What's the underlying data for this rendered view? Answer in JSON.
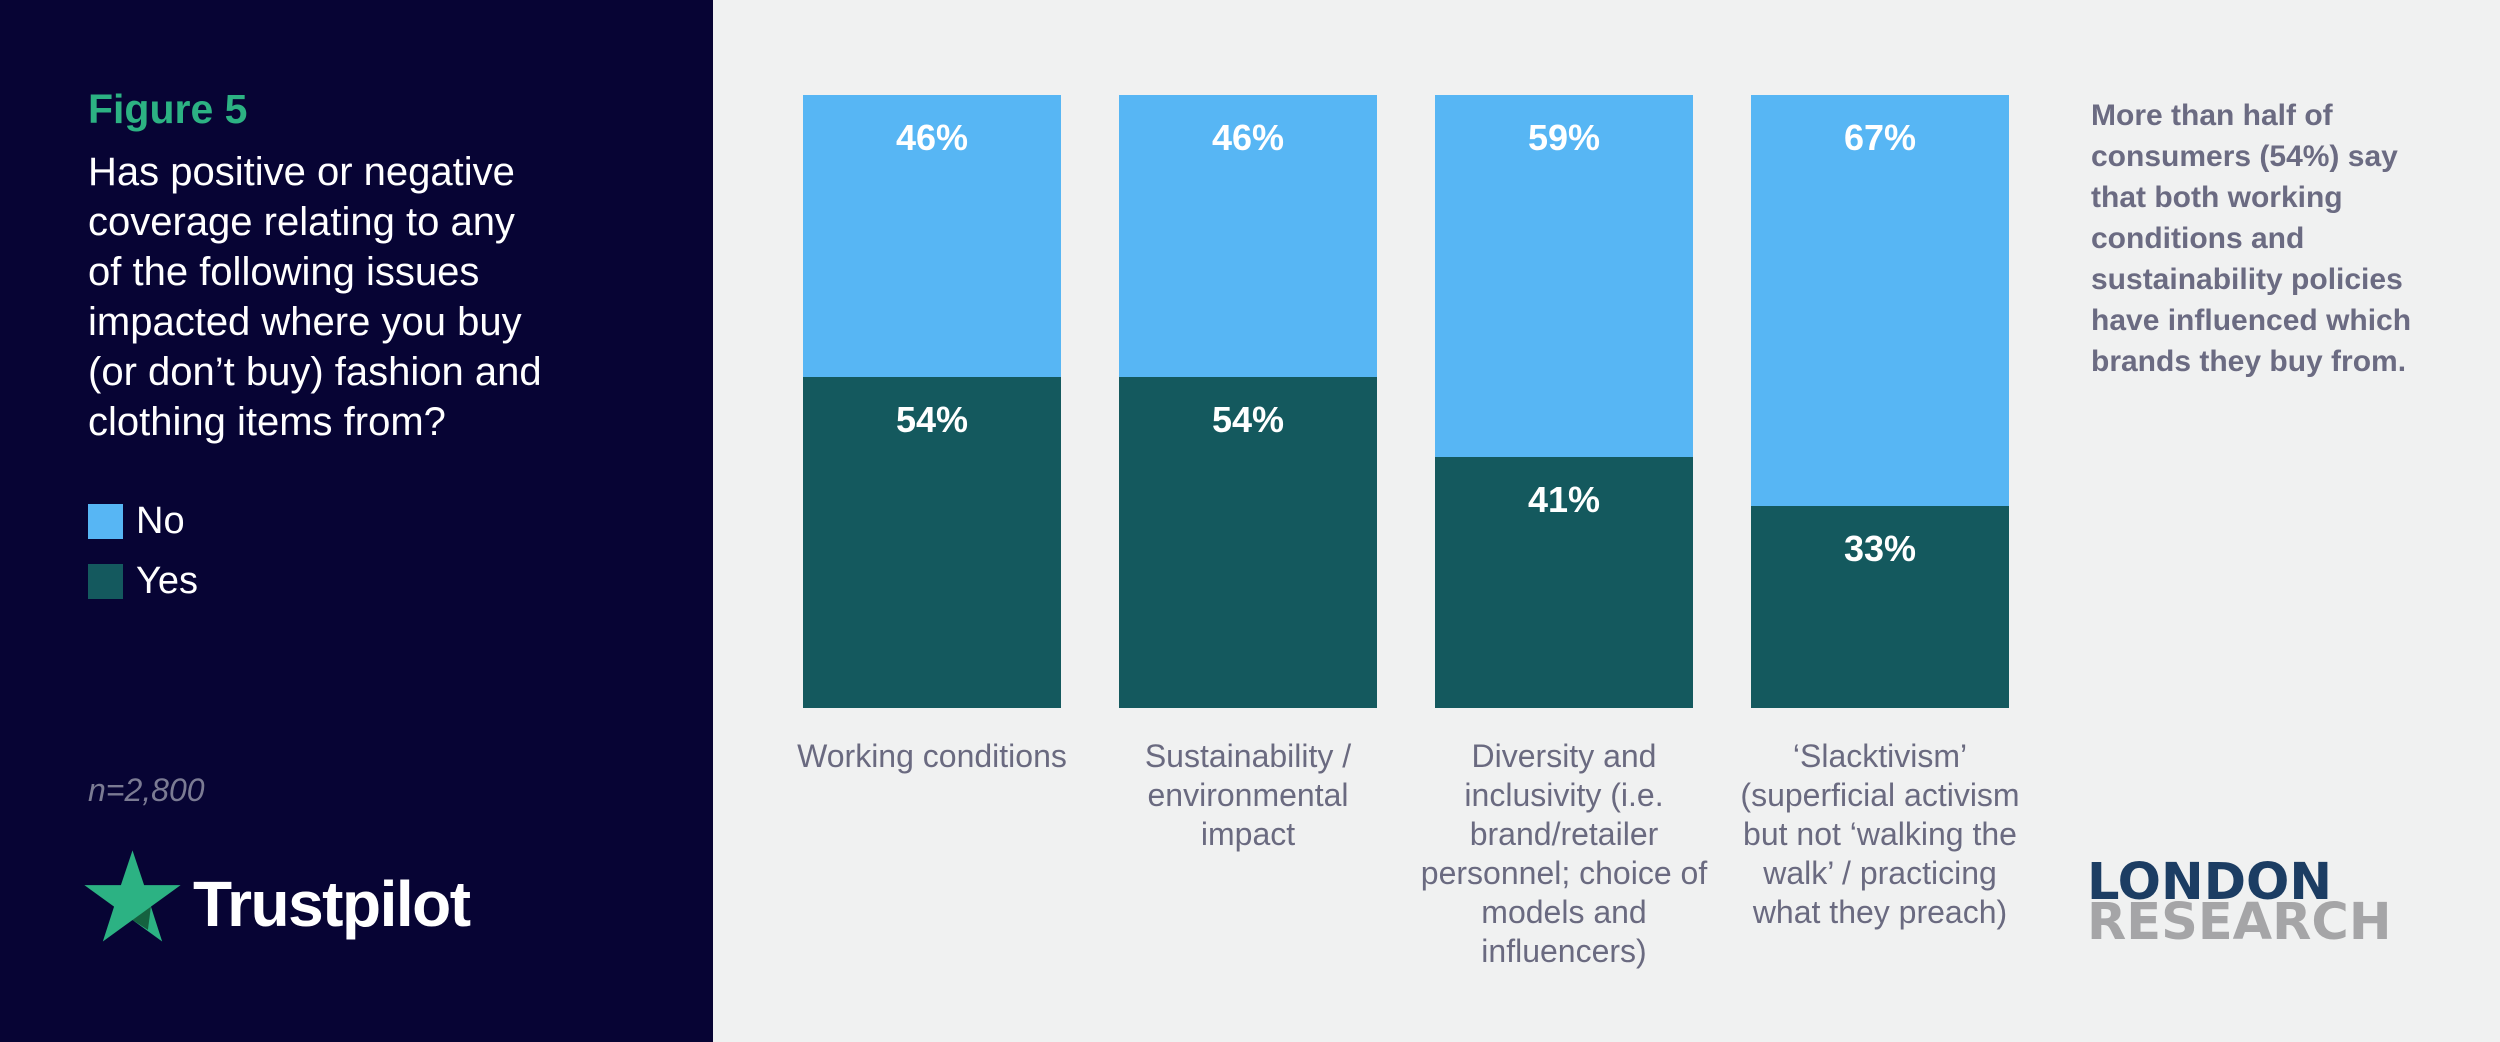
{
  "left_panel": {
    "figure_label": "Figure 5",
    "question": "Has positive or negative coverage relating to any of the following issues impacted where you buy (or don’t buy) fashion and clothing items from?",
    "legend": [
      {
        "label": "No",
        "color": "#57b6f4"
      },
      {
        "label": "Yes",
        "color": "#14595e"
      }
    ],
    "sample_size": "n=2,800",
    "brand": "Trustpilot"
  },
  "chart_data": {
    "type": "bar",
    "stacked": true,
    "orientation": "vertical",
    "unit": "%",
    "value_suffix": "%",
    "ylim": [
      0,
      100
    ],
    "grid": false,
    "legend_position": "left-panel",
    "categories": [
      "Working conditions",
      "Sustainability / environmental impact",
      "Diversity and inclusivity (i.e. brand/retailer personnel; choice of models and influencers)",
      "‘Slacktivism’ (superficial activism but not ‘walking the walk’ / practicing what they preach)"
    ],
    "series": [
      {
        "name": "No",
        "color": "#57b6f4",
        "values": [
          46,
          46,
          59,
          67
        ]
      },
      {
        "name": "Yes",
        "color": "#14595e",
        "values": [
          54,
          54,
          41,
          33
        ]
      }
    ]
  },
  "annotation": "More than half of consumers (54%) say that both working conditions and sustainability policies have influenced which brands they buy from.",
  "footer_logo": {
    "line1": "LONDON",
    "line2": "RESEARCH"
  },
  "colors": {
    "panel_background": "#070434",
    "page_background": "#f0f1f1",
    "accent_green": "#2cb283",
    "star_shadow_green": "#156240",
    "label_gray": "#6a6a80",
    "london_navy": "#1c3d63",
    "research_gray": "#a5a5a7"
  }
}
